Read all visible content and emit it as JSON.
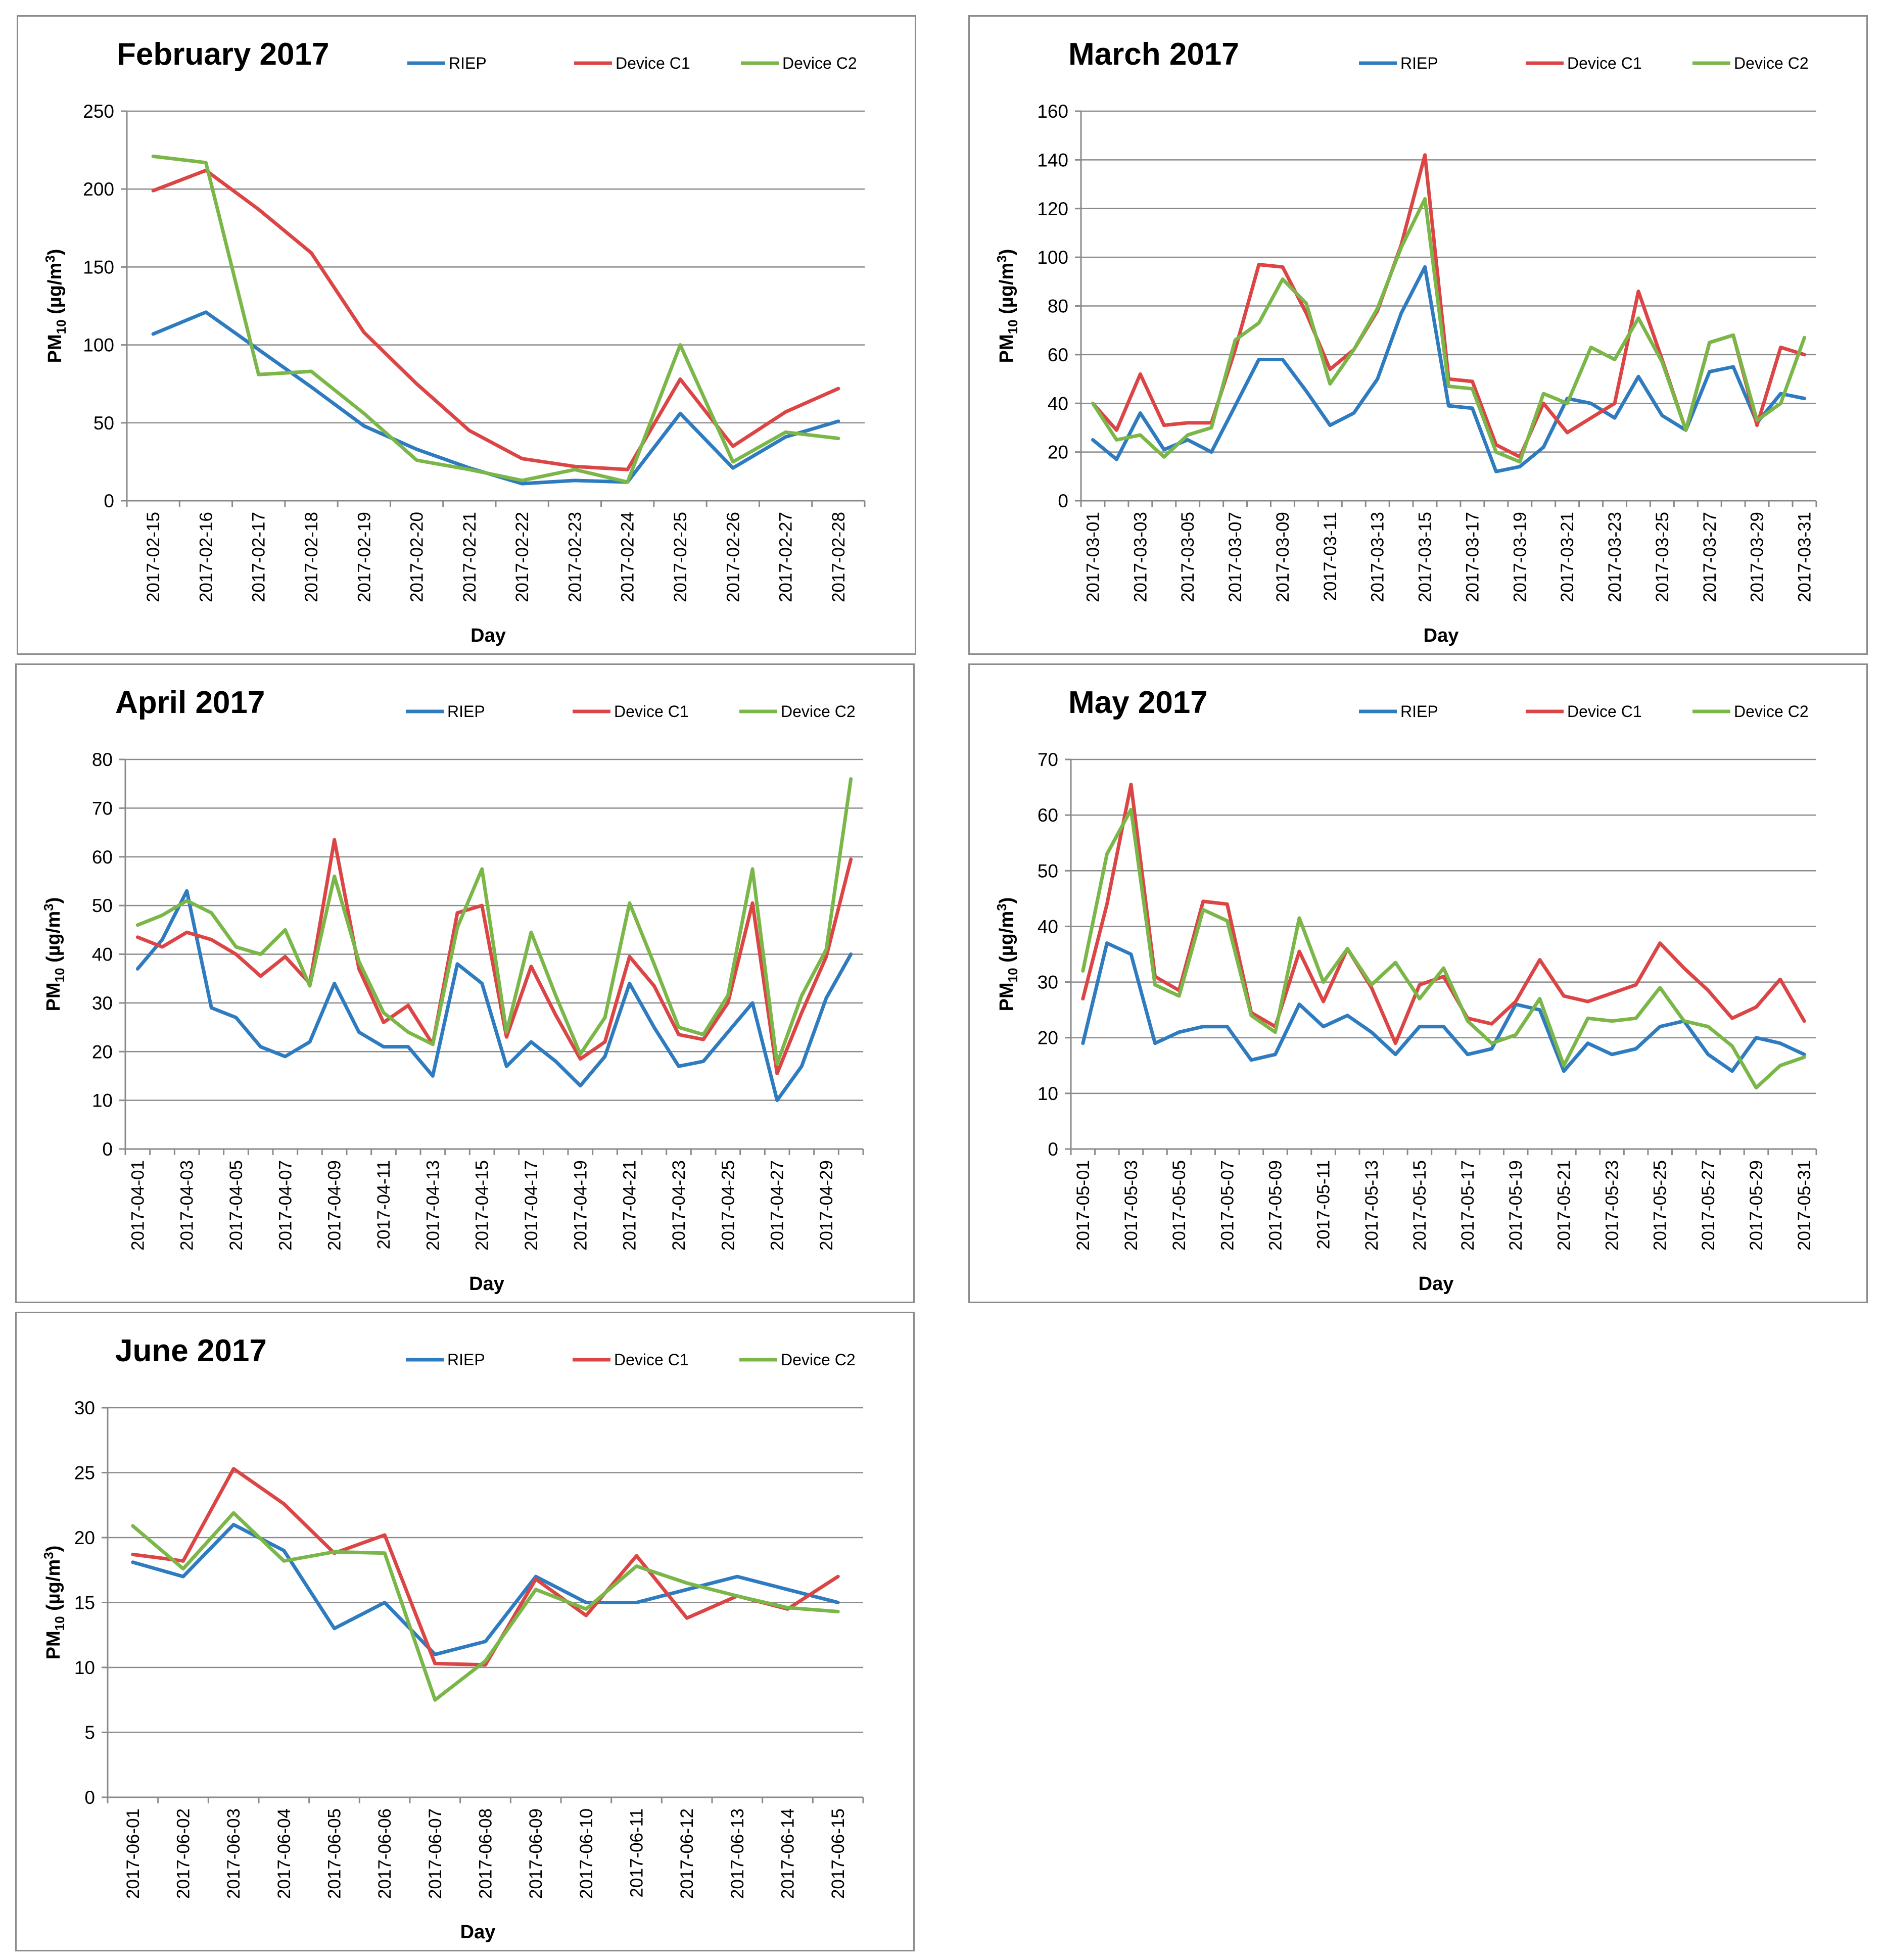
{
  "legend_labels": [
    "RIEP",
    "Device C1",
    "Device C2"
  ],
  "colors": {
    "RIEP": "#2e7bbf",
    "Device C1": "#dc4545",
    "Device C2": "#7ab648"
  },
  "chart_data": [
    {
      "type": "line",
      "title": "February 2017",
      "xlabel": "Day",
      "ylabel_main": "PM",
      "ylabel_sub": "10",
      "ylabel_unit": " (µg/m",
      "ylabel_sup": "3",
      "ylabel_end": ")",
      "ylim": [
        0,
        250
      ],
      "yticks": [
        0,
        50,
        100,
        150,
        200,
        250
      ],
      "x": [
        "2017-02-15",
        "2017-02-16",
        "2017-02-17",
        "2017-02-18",
        "2017-02-19",
        "2017-02-20",
        "2017-02-21",
        "2017-02-22",
        "2017-02-23",
        "2017-02-24",
        "2017-02-25",
        "2017-02-26",
        "2017-02-27",
        "2017-02-28"
      ],
      "series": [
        {
          "name": "RIEP",
          "values": [
            107,
            121,
            97,
            73,
            48,
            33,
            21,
            11,
            13,
            12,
            56,
            21,
            41,
            51
          ]
        },
        {
          "name": "Device C1",
          "values": [
            199,
            212,
            187,
            159,
            108,
            75,
            45,
            27,
            22,
            20,
            78,
            35,
            57,
            72
          ]
        },
        {
          "name": "Device C2",
          "values": [
            221,
            217,
            81,
            83,
            56,
            26,
            20,
            13,
            20,
            12,
            100,
            25,
            44,
            40
          ]
        }
      ]
    },
    {
      "type": "line",
      "title": "March 2017",
      "xlabel": "Day",
      "ylabel_main": "PM",
      "ylabel_sub": "10",
      "ylabel_unit": " (µg/m",
      "ylabel_sup": "3",
      "ylabel_end": ")",
      "ylim": [
        0,
        160
      ],
      "yticks": [
        0,
        20,
        40,
        60,
        80,
        100,
        120,
        140,
        160
      ],
      "x": [
        "2017-03-01",
        "2017-03-02",
        "2017-03-03",
        "2017-03-04",
        "2017-03-05",
        "2017-03-06",
        "2017-03-07",
        "2017-03-08",
        "2017-03-09",
        "2017-03-10",
        "2017-03-11",
        "2017-03-12",
        "2017-03-13",
        "2017-03-14",
        "2017-03-15",
        "2017-03-16",
        "2017-03-17",
        "2017-03-18",
        "2017-03-19",
        "2017-03-20",
        "2017-03-21",
        "2017-03-22",
        "2017-03-23",
        "2017-03-24",
        "2017-03-25",
        "2017-03-26",
        "2017-03-27",
        "2017-03-28",
        "2017-03-29",
        "2017-03-30",
        "2017-03-31"
      ],
      "xtick_labels": [
        "2017-03-01",
        "",
        "2017-03-03",
        "",
        "2017-03-05",
        "",
        "2017-03-07",
        "",
        "2017-03-09",
        "",
        "2017-03-11",
        "",
        "2017-03-13",
        "",
        "2017-03-15",
        "",
        "2017-03-17",
        "",
        "2017-03-19",
        "",
        "2017-03-21",
        "",
        "2017-03-23",
        "",
        "2017-03-25",
        "",
        "2017-03-27",
        "",
        "2017-03-29",
        "",
        "2017-03-31"
      ],
      "series": [
        {
          "name": "RIEP",
          "values": [
            25,
            17,
            36,
            21,
            25,
            20,
            39,
            58,
            58,
            45,
            31,
            36,
            50,
            77,
            96,
            39,
            38,
            12,
            14,
            22,
            42,
            40,
            34,
            51,
            35,
            29,
            53,
            55,
            32,
            44,
            42
          ]
        },
        {
          "name": "Device C1",
          "values": [
            40,
            29,
            52,
            31,
            32,
            32,
            62,
            97,
            96,
            77,
            54,
            62,
            78,
            105,
            142,
            50,
            49,
            23,
            18,
            40,
            28,
            34,
            40,
            86,
            58,
            29,
            65,
            68,
            31,
            63,
            60
          ]
        },
        {
          "name": "Device C2",
          "values": [
            40,
            25,
            27,
            18,
            27,
            30,
            66,
            73,
            91,
            81,
            48,
            62,
            79,
            104,
            124,
            47,
            46,
            20,
            16,
            44,
            40,
            63,
            58,
            75,
            57,
            29,
            65,
            68,
            33,
            40,
            67
          ]
        }
      ]
    },
    {
      "type": "line",
      "title": "April 2017",
      "xlabel": "Day",
      "ylabel_main": "PM",
      "ylabel_sub": "10",
      "ylabel_unit": " (µg/m",
      "ylabel_sup": "3",
      "ylabel_end": ")",
      "ylim": [
        0,
        80
      ],
      "yticks": [
        0,
        10,
        20,
        30,
        40,
        50,
        60,
        70,
        80
      ],
      "x": [
        "2017-04-01",
        "2017-04-02",
        "2017-04-03",
        "2017-04-04",
        "2017-04-05",
        "2017-04-06",
        "2017-04-07",
        "2017-04-08",
        "2017-04-09",
        "2017-04-10",
        "2017-04-11",
        "2017-04-12",
        "2017-04-13",
        "2017-04-14",
        "2017-04-15",
        "2017-04-16",
        "2017-04-17",
        "2017-04-18",
        "2017-04-19",
        "2017-04-20",
        "2017-04-21",
        "2017-04-22",
        "2017-04-23",
        "2017-04-24",
        "2017-04-25",
        "2017-04-26",
        "2017-04-27",
        "2017-04-28",
        "2017-04-29",
        "2017-04-30"
      ],
      "xtick_labels": [
        "2017-04-01",
        "",
        "2017-04-03",
        "",
        "2017-04-05",
        "",
        "2017-04-07",
        "",
        "2017-04-09",
        "",
        "2017-04-11",
        "",
        "2017-04-13",
        "",
        "2017-04-15",
        "",
        "2017-04-17",
        "",
        "2017-04-19",
        "",
        "2017-04-21",
        "",
        "2017-04-23",
        "",
        "2017-04-25",
        "",
        "2017-04-27",
        "",
        "2017-04-29",
        ""
      ],
      "series": [
        {
          "name": "RIEP",
          "values": [
            37,
            43,
            53,
            29,
            27,
            21,
            19,
            22,
            34,
            24,
            21,
            21,
            15,
            38,
            34,
            17,
            22,
            18,
            13,
            19,
            34,
            25,
            17,
            18,
            24,
            30,
            10,
            17,
            31,
            40
          ]
        },
        {
          "name": "Device C1",
          "values": [
            43.5,
            41.5,
            44.5,
            43,
            40,
            35.5,
            39.5,
            34,
            63.5,
            37,
            26,
            29.5,
            21.5,
            48.5,
            50,
            23,
            37.5,
            27.5,
            18.5,
            22,
            39.5,
            33.5,
            23.5,
            22.5,
            30,
            50.5,
            15.5,
            28,
            39.5,
            59.5
          ]
        },
        {
          "name": "Device C2",
          "values": [
            46,
            48,
            51,
            48.5,
            41.5,
            40,
            45,
            33.5,
            56,
            38.5,
            28,
            24,
            21.5,
            45.5,
            57.5,
            24,
            44.5,
            31.5,
            19.5,
            27,
            50.5,
            38,
            25,
            23.5,
            31.5,
            57.5,
            17.5,
            31.5,
            41,
            76
          ]
        }
      ]
    },
    {
      "type": "line",
      "title": "May 2017",
      "xlabel": "Day",
      "ylabel_main": "PM",
      "ylabel_sub": "10",
      "ylabel_unit": " (µg/m",
      "ylabel_sup": "3",
      "ylabel_end": ")",
      "ylim": [
        0,
        70
      ],
      "yticks": [
        0,
        10,
        20,
        30,
        40,
        50,
        60,
        70
      ],
      "x": [
        "2017-05-01",
        "2017-05-02",
        "2017-05-03",
        "2017-05-04",
        "2017-05-05",
        "2017-05-06",
        "2017-05-07",
        "2017-05-08",
        "2017-05-09",
        "2017-05-10",
        "2017-05-11",
        "2017-05-12",
        "2017-05-13",
        "2017-05-14",
        "2017-05-15",
        "2017-05-16",
        "2017-05-17",
        "2017-05-18",
        "2017-05-19",
        "2017-05-20",
        "2017-05-21",
        "2017-05-22",
        "2017-05-23",
        "2017-05-24",
        "2017-05-25",
        "2017-05-26",
        "2017-05-27",
        "2017-05-28",
        "2017-05-29",
        "2017-05-30",
        "2017-05-31"
      ],
      "xtick_labels": [
        "2017-05-01",
        "",
        "2017-05-03",
        "",
        "2017-05-05",
        "",
        "2017-05-07",
        "",
        "2017-05-09",
        "",
        "2017-05-11",
        "",
        "2017-05-13",
        "",
        "2017-05-15",
        "",
        "2017-05-17",
        "",
        "2017-05-19",
        "",
        "2017-05-21",
        "",
        "2017-05-23",
        "",
        "2017-05-25",
        "",
        "2017-05-27",
        "",
        "2017-05-29",
        "",
        "2017-05-31"
      ],
      "series": [
        {
          "name": "RIEP",
          "values": [
            19,
            37,
            35,
            19,
            21,
            22,
            22,
            16,
            17,
            26,
            22,
            24,
            21,
            17,
            22,
            22,
            17,
            18,
            26,
            25,
            14,
            19,
            17,
            18,
            22,
            23,
            17,
            14,
            20,
            19,
            17
          ]
        },
        {
          "name": "Device C1",
          "values": [
            27,
            44,
            65.5,
            31,
            28.5,
            44.5,
            44,
            24.5,
            22,
            35.5,
            26.5,
            36,
            29,
            19,
            29.5,
            31,
            23.5,
            22.5,
            26.5,
            34,
            27.5,
            26.5,
            28,
            29.5,
            37,
            32.5,
            28.5,
            23.5,
            25.5,
            30.5,
            23
          ]
        },
        {
          "name": "Device C2",
          "values": [
            32,
            53,
            61,
            29.5,
            27.5,
            43,
            41,
            24,
            21,
            41.5,
            30,
            36,
            29.5,
            33.5,
            27,
            32.5,
            23,
            19,
            20.5,
            27,
            15,
            23.5,
            23,
            23.5,
            29,
            23,
            22,
            18.5,
            11,
            15,
            16.5
          ]
        }
      ]
    },
    {
      "type": "line",
      "title": "June 2017",
      "xlabel": "Day",
      "ylabel_main": "PM",
      "ylabel_sub": "10",
      "ylabel_unit": " (µg/m",
      "ylabel_sup": "3",
      "ylabel_end": ")",
      "ylim": [
        0,
        30
      ],
      "yticks": [
        0,
        5,
        10,
        15,
        20,
        25,
        30
      ],
      "x": [
        "2017-06-01",
        "2017-06-02",
        "2017-06-03",
        "2017-06-04",
        "2017-06-05",
        "2017-06-06",
        "2017-06-07",
        "2017-06-08",
        "2017-06-09",
        "2017-06-10",
        "2017-06-11",
        "2017-06-12",
        "2017-06-13",
        "2017-06-14",
        "2017-06-15"
      ],
      "series": [
        {
          "name": "RIEP",
          "values": [
            18.1,
            17,
            21,
            19,
            13,
            15,
            11,
            12,
            17,
            15,
            15,
            16,
            17,
            16,
            15
          ]
        },
        {
          "name": "Device C1",
          "values": [
            18.7,
            18.2,
            25.3,
            22.6,
            18.8,
            20.2,
            10.3,
            10.2,
            16.8,
            14,
            18.6,
            13.8,
            15.5,
            14.5,
            17
          ]
        },
        {
          "name": "Device C2",
          "values": [
            20.9,
            17.6,
            21.9,
            18.2,
            18.9,
            18.8,
            7.5,
            10.5,
            16,
            14.5,
            17.8,
            16.5,
            15.5,
            14.6,
            14.3
          ]
        }
      ]
    }
  ]
}
